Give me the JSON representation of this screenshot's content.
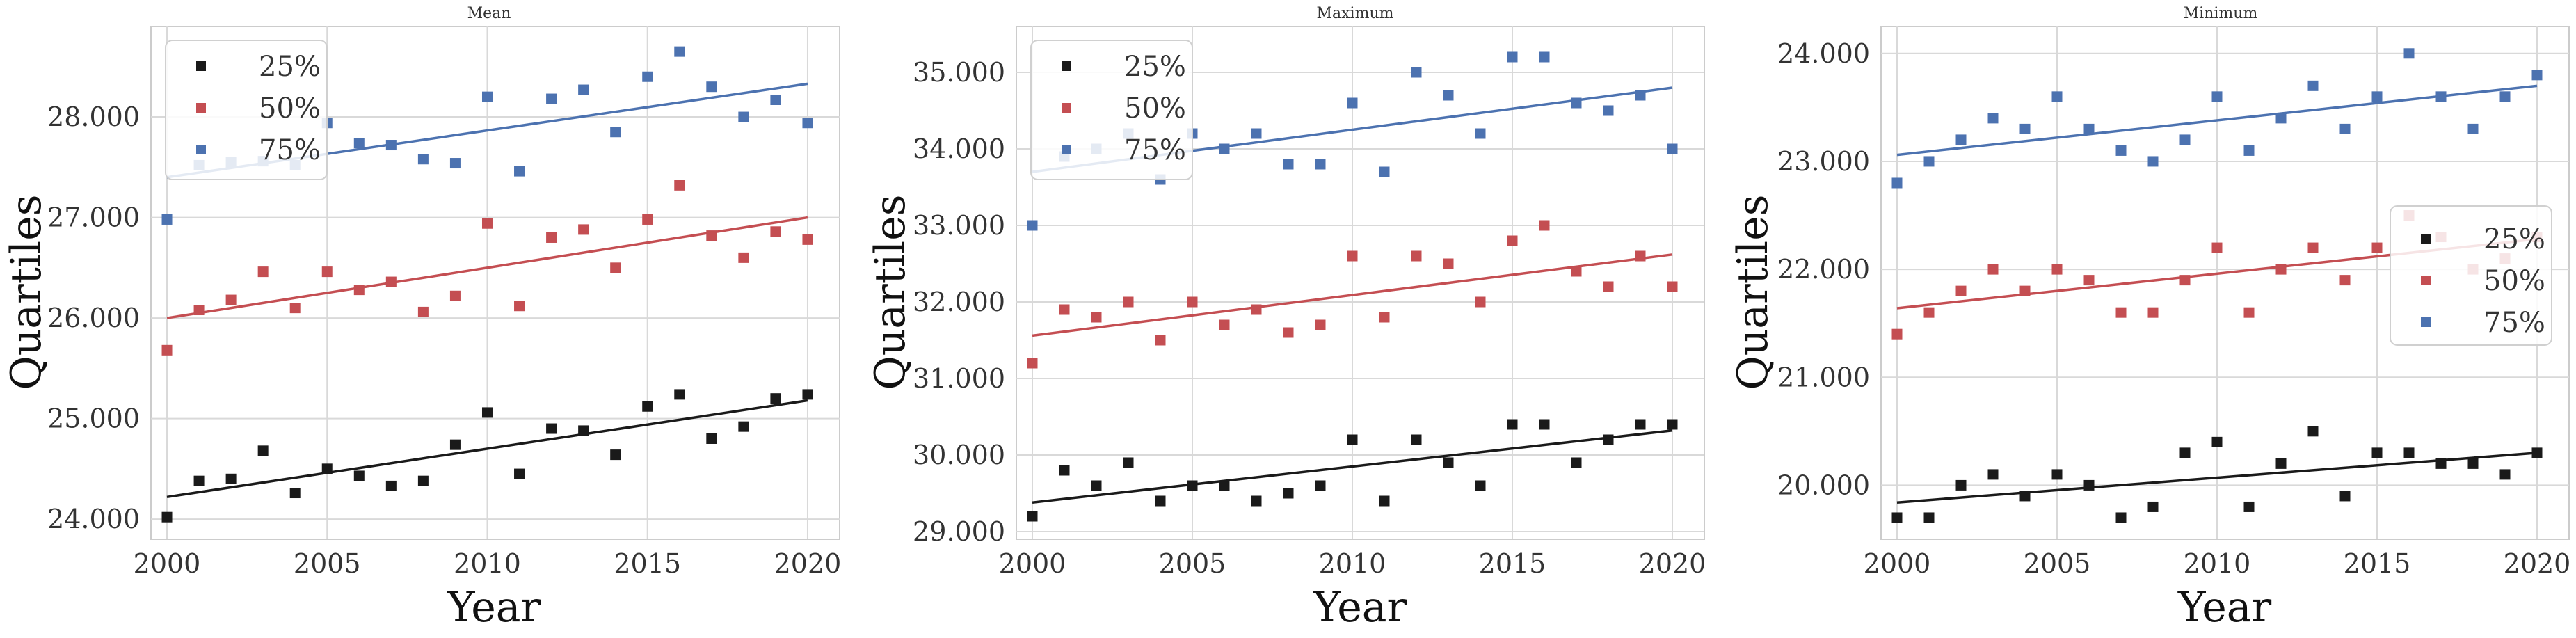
{
  "colors": {
    "series_25": "#1a1a1a",
    "series_50": "#c44e52",
    "series_75": "#4c72b0",
    "grid": "#d9d9d9",
    "frame": "#cccccc"
  },
  "chart_data": [
    {
      "type": "scatter",
      "title": "Mean",
      "xlabel": "Year",
      "ylabel": "Quartiles",
      "grid": true,
      "legend_position": "top-left",
      "xlim": [
        1999.5,
        2021
      ],
      "ylim": [
        23800,
        28900
      ],
      "xticks": [
        2000,
        2005,
        2010,
        2015,
        2020
      ],
      "xtick_labels": [
        "2000",
        "2005",
        "2010",
        "2015",
        "2020"
      ],
      "yticks": [
        24000,
        25000,
        26000,
        27000,
        28000
      ],
      "ytick_labels": [
        "24.000",
        "25.000",
        "26.000",
        "27.000",
        "28.000"
      ],
      "x": [
        2000,
        2001,
        2002,
        2003,
        2004,
        2005,
        2006,
        2007,
        2008,
        2009,
        2010,
        2011,
        2012,
        2013,
        2014,
        2015,
        2016,
        2017,
        2018,
        2019,
        2020
      ],
      "series": [
        {
          "name": "25%",
          "values": [
            24020,
            24380,
            24400,
            24680,
            24260,
            24500,
            24430,
            24330,
            24380,
            24740,
            25060,
            24450,
            24900,
            24880,
            24640,
            25120,
            25240,
            24800,
            24920,
            25200,
            25240
          ],
          "trend": [
            24220,
            25180
          ]
        },
        {
          "name": "50%",
          "values": [
            25680,
            26080,
            26180,
            26460,
            26100,
            26460,
            26280,
            26360,
            26060,
            26220,
            26940,
            26120,
            26800,
            26880,
            26500,
            26980,
            27320,
            26820,
            26600,
            26860,
            26780
          ],
          "trend": [
            26000,
            27000
          ]
        },
        {
          "name": "75%",
          "values": [
            26980,
            27520,
            27550,
            27560,
            27520,
            27940,
            27740,
            27720,
            27580,
            27540,
            28200,
            27460,
            28180,
            28270,
            27850,
            28400,
            28650,
            28300,
            28000,
            28170,
            27940
          ],
          "trend": [
            27400,
            28330
          ]
        }
      ]
    },
    {
      "type": "scatter",
      "title": "Maximum",
      "xlabel": "Year",
      "ylabel": "Quartiles",
      "grid": true,
      "legend_position": "top-left",
      "xlim": [
        1999.5,
        2021
      ],
      "ylim": [
        28900,
        35600
      ],
      "xticks": [
        2000,
        2005,
        2010,
        2015,
        2020
      ],
      "xtick_labels": [
        "2000",
        "2005",
        "2010",
        "2015",
        "2020"
      ],
      "yticks": [
        29000,
        30000,
        31000,
        32000,
        33000,
        34000,
        35000
      ],
      "ytick_labels": [
        "29.000",
        "30.000",
        "31.000",
        "32.000",
        "33.000",
        "34.000",
        "35.000"
      ],
      "x": [
        2000,
        2001,
        2002,
        2003,
        2004,
        2005,
        2006,
        2007,
        2008,
        2009,
        2010,
        2011,
        2012,
        2013,
        2014,
        2015,
        2016,
        2017,
        2018,
        2019,
        2020
      ],
      "series": [
        {
          "name": "25%",
          "values": [
            29200,
            29800,
            29600,
            29900,
            29400,
            29600,
            29600,
            29400,
            29500,
            29600,
            30200,
            29400,
            30200,
            29900,
            29600,
            30400,
            30400,
            29900,
            30200,
            30400,
            30400
          ],
          "trend": [
            29380,
            30320
          ]
        },
        {
          "name": "50%",
          "values": [
            31200,
            31900,
            31800,
            32000,
            31500,
            32000,
            31700,
            31900,
            31600,
            31700,
            32600,
            31800,
            32600,
            32500,
            32000,
            32800,
            33000,
            32400,
            32200,
            32600,
            32200
          ],
          "trend": [
            31560,
            32620
          ]
        },
        {
          "name": "75%",
          "values": [
            33000,
            33900,
            34000,
            34200,
            33600,
            34200,
            34000,
            34200,
            33800,
            33800,
            34600,
            33700,
            35000,
            34700,
            34200,
            35200,
            35200,
            34600,
            34500,
            34700,
            34000
          ],
          "trend": [
            33700,
            34800
          ]
        }
      ]
    },
    {
      "type": "scatter",
      "title": "Minimum",
      "xlabel": "Year",
      "ylabel": "Quartiles",
      "grid": true,
      "legend_position": "right",
      "xlim": [
        1999.5,
        2021
      ],
      "ylim": [
        19500,
        24250
      ],
      "xticks": [
        2000,
        2005,
        2010,
        2015,
        2020
      ],
      "xtick_labels": [
        "2000",
        "2005",
        "2010",
        "2015",
        "2020"
      ],
      "yticks": [
        20000,
        21000,
        22000,
        23000,
        24000
      ],
      "ytick_labels": [
        "20.000",
        "21.000",
        "22.000",
        "23.000",
        "24.000"
      ],
      "x": [
        2000,
        2001,
        2002,
        2003,
        2004,
        2005,
        2006,
        2007,
        2008,
        2009,
        2010,
        2011,
        2012,
        2013,
        2014,
        2015,
        2016,
        2017,
        2018,
        2019,
        2020
      ],
      "series": [
        {
          "name": "25%",
          "values": [
            19700,
            19700,
            20000,
            20100,
            19900,
            20100,
            20000,
            19700,
            19800,
            20300,
            20400,
            19800,
            20200,
            20500,
            19900,
            20300,
            20300,
            20200,
            20200,
            20100,
            20300
          ],
          "trend": [
            19840,
            20300
          ]
        },
        {
          "name": "50%",
          "values": [
            21400,
            21600,
            21800,
            22000,
            21800,
            22000,
            21900,
            21600,
            21600,
            21900,
            22200,
            21600,
            22000,
            22200,
            21900,
            22200,
            22500,
            22300,
            22000,
            22100,
            22300
          ],
          "trend": [
            21640,
            22280
          ]
        },
        {
          "name": "75%",
          "values": [
            22800,
            23000,
            23200,
            23400,
            23300,
            23600,
            23300,
            23100,
            23000,
            23200,
            23600,
            23100,
            23400,
            23700,
            23300,
            23600,
            24000,
            23600,
            23300,
            23600,
            23800
          ],
          "trend": [
            23060,
            23700
          ]
        }
      ]
    }
  ]
}
